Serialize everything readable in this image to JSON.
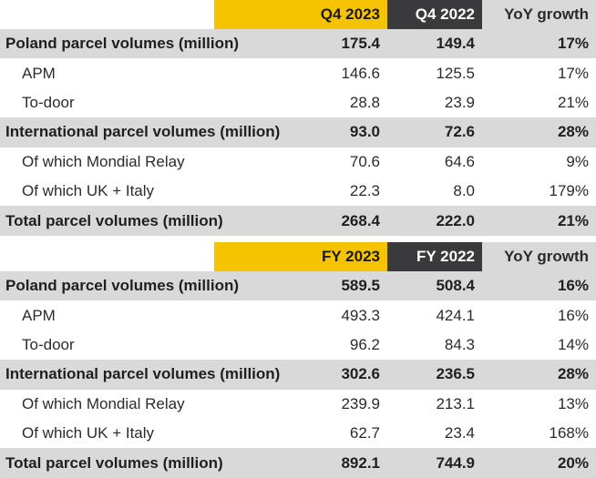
{
  "q4_table": {
    "headers": [
      "Q4 2023",
      "Q4 2022",
      "YoY growth"
    ],
    "rows": [
      {
        "type": "main",
        "label": "Poland parcel volumes (million)",
        "v1": "175.4",
        "v2": "149.4",
        "v3": "17%"
      },
      {
        "type": "sub",
        "label": "APM",
        "v1": "146.6",
        "v2": "125.5",
        "v3": "17%"
      },
      {
        "type": "sub",
        "label": "To-door",
        "v1": "28.8",
        "v2": "23.9",
        "v3": "21%"
      },
      {
        "type": "main",
        "label": "International parcel volumes (million)",
        "v1": "93.0",
        "v2": "72.6",
        "v3": "28%"
      },
      {
        "type": "sub",
        "label": "Of which Mondial Relay",
        "v1": "70.6",
        "v2": "64.6",
        "v3": "9%"
      },
      {
        "type": "sub",
        "label": "Of which UK + Italy",
        "v1": "22.3",
        "v2": "8.0",
        "v3": "179%"
      },
      {
        "type": "main",
        "label": "Total parcel volumes (million)",
        "v1": "268.4",
        "v2": "222.0",
        "v3": "21%"
      }
    ]
  },
  "fy_table": {
    "headers": [
      "FY 2023",
      "FY 2022",
      "YoY growth"
    ],
    "rows": [
      {
        "type": "main",
        "label": "Poland parcel volumes (million)",
        "v1": "589.5",
        "v2": "508.4",
        "v3": "16%"
      },
      {
        "type": "sub",
        "label": "APM",
        "v1": "493.3",
        "v2": "424.1",
        "v3": "16%"
      },
      {
        "type": "sub",
        "label": "To-door",
        "v1": "96.2",
        "v2": "84.3",
        "v3": "14%"
      },
      {
        "type": "main",
        "label": "International parcel volumes (million)",
        "v1": "302.6",
        "v2": "236.5",
        "v3": "28%"
      },
      {
        "type": "sub",
        "label": "Of which Mondial Relay",
        "v1": "239.9",
        "v2": "213.1",
        "v3": "13%"
      },
      {
        "type": "sub",
        "label": "Of which UK + Italy",
        "v1": "62.7",
        "v2": "23.4",
        "v3": "168%"
      },
      {
        "type": "main",
        "label": "Total parcel volumes (million)",
        "v1": "892.1",
        "v2": "744.9",
        "v3": "20%"
      }
    ]
  }
}
